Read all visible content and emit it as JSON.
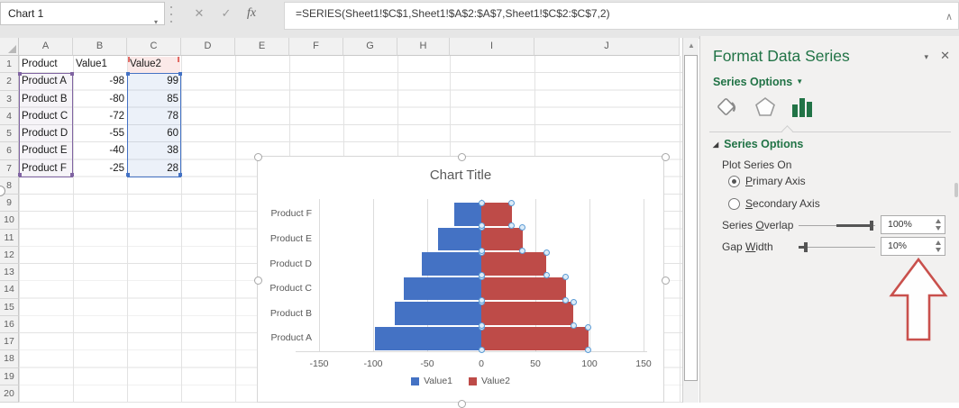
{
  "formula_bar": {
    "name_box_value": "Chart 1",
    "formula": "=SERIES(Sheet1!$C$1,Sheet1!$A$2:$A$7,Sheet1!$C$2:$C$7,2)",
    "icons": {
      "name_box_dropdown": "▾",
      "cancel": "✕",
      "enter": "✓",
      "insert_function": "fx",
      "collapse_formula_bar": "∧",
      "scroll_up": "▲"
    }
  },
  "sheet": {
    "column_headers": [
      "A",
      "B",
      "C",
      "D",
      "E",
      "F",
      "G",
      "H",
      "I",
      "J"
    ],
    "row_headers": [
      "1",
      "2",
      "3",
      "4",
      "5",
      "6",
      "7",
      "8",
      "9",
      "10",
      "11",
      "12",
      "13",
      "14",
      "15",
      "16",
      "17",
      "18",
      "19",
      "20"
    ],
    "table": {
      "header_row": [
        "Product",
        "Value1",
        "Value2"
      ],
      "rows": [
        [
          "Product A",
          "-98",
          "99"
        ],
        [
          "Product B",
          "-80",
          "85"
        ],
        [
          "Product C",
          "-72",
          "78"
        ],
        [
          "Product D",
          "-55",
          "60"
        ],
        [
          "Product E",
          "-40",
          "38"
        ],
        [
          "Product F",
          "-25",
          "28"
        ]
      ]
    }
  },
  "chart_data": {
    "type": "bar",
    "orientation": "horizontal",
    "title": "Chart Title",
    "categories": [
      "Product A",
      "Product B",
      "Product C",
      "Product D",
      "Product E",
      "Product F"
    ],
    "series": [
      {
        "name": "Value1",
        "color": "#4472C4",
        "values": [
          -98,
          -80,
          -72,
          -55,
          -40,
          -25
        ]
      },
      {
        "name": "Value2",
        "color": "#BE4B48",
        "values": [
          99,
          85,
          78,
          60,
          38,
          28
        ]
      }
    ],
    "x_ticks": [
      -150,
      -100,
      -50,
      0,
      50,
      100,
      150
    ],
    "xlim": [
      -175,
      175
    ],
    "grid": true,
    "legend_position": "bottom",
    "selected_series_index": 1
  },
  "panel": {
    "title": "Format Data Series",
    "options_dropdown_label": "Series Options",
    "tabs": [
      {
        "name": "fill-line"
      },
      {
        "name": "effects"
      },
      {
        "name": "series-options",
        "selected": true
      }
    ],
    "section": {
      "header": "Series Options",
      "plot_series_on_label": "Plot Series On",
      "primary_axis": {
        "u": "P",
        "post": "rimary Axis",
        "selected": true
      },
      "secondary_axis": {
        "u": "S",
        "post": "econdary Axis",
        "selected": false
      },
      "series_overlap": {
        "pre": "Series ",
        "u": "O",
        "post": "verlap",
        "value": "100%"
      },
      "gap_width": {
        "pre": "Gap ",
        "u": "W",
        "post": "idth",
        "value": "10%"
      }
    }
  },
  "colors": {
    "accent_green": "#217346",
    "series1_blue": "#4472C4",
    "series2_red": "#BE4B48",
    "annotation_arrow": "#C9504C",
    "range_purple": "#8064A2",
    "range_blue": "#4472C4",
    "range_red": "#E26B65"
  }
}
